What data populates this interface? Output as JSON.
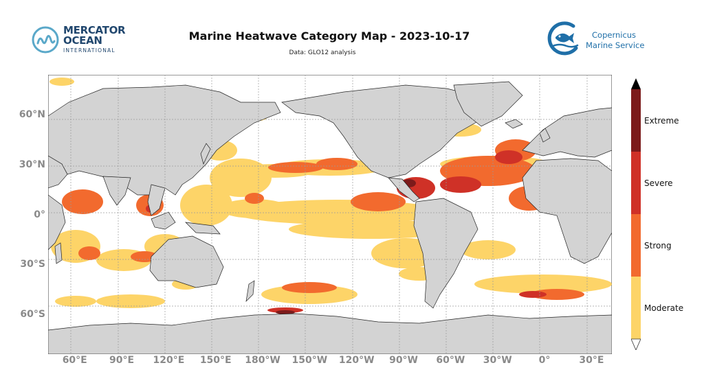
{
  "header": {
    "title": "Marine Heatwave Category Map - 2023-10-17",
    "subtitle": "Data: GLO12 analysis"
  },
  "logos": {
    "left": {
      "line1": "MERCATOR",
      "line2": "OCEAN",
      "line3": "INTERNATIONAL"
    },
    "right": {
      "line1": "Copernicus",
      "line2": "Marine Service"
    }
  },
  "map": {
    "projection": "equirectangular",
    "lon_range": [
      40,
      400
    ],
    "lat_range": [
      -90,
      90
    ],
    "gridlines": true,
    "lat_ticks": [
      {
        "lat": 60,
        "label": "60°N"
      },
      {
        "lat": 30,
        "label": "30°N"
      },
      {
        "lat": 0,
        "label": "0°"
      },
      {
        "lat": -30,
        "label": "30°S"
      },
      {
        "lat": -60,
        "label": "60°S"
      }
    ],
    "lon_ticks": [
      {
        "lon": 60,
        "label": "60°E"
      },
      {
        "lon": 90,
        "label": "90°E"
      },
      {
        "lon": 120,
        "label": "120°E"
      },
      {
        "lon": 150,
        "label": "150°E"
      },
      {
        "lon": 180,
        "label": "180°W"
      },
      {
        "lon": 210,
        "label": "150°W"
      },
      {
        "lon": 240,
        "label": "120°W"
      },
      {
        "lon": 270,
        "label": "90°W"
      },
      {
        "lon": 300,
        "label": "60°W"
      },
      {
        "lon": 330,
        "label": "30°W"
      },
      {
        "lon": 360,
        "label": "0°"
      },
      {
        "lon": 390,
        "label": "30°E"
      }
    ],
    "colors": {
      "land": "#d3d3d3",
      "ocean": "#ffffff",
      "coast": "#222222",
      "grid": "#9a9a9a"
    }
  },
  "legend": {
    "position": "right",
    "extend": "both",
    "categories": [
      {
        "label": "Moderate",
        "color": "#fdd468"
      },
      {
        "label": "Strong",
        "color": "#f26a2e"
      },
      {
        "label": "Severe",
        "color": "#cf3127"
      },
      {
        "label": "Extreme",
        "color": "#7c1b1b"
      }
    ],
    "under_color": "#ffffff",
    "over_color": "#000000"
  }
}
